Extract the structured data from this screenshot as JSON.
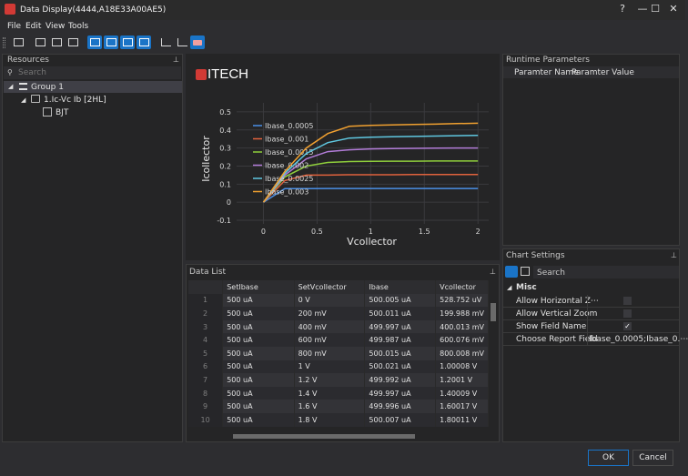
{
  "window": {
    "title": "Data Display(4444,A18E33A00AE5)",
    "controls": [
      "?",
      "—",
      "☐",
      "✕"
    ]
  },
  "menu": [
    "File",
    "Edit",
    "View",
    "Tools"
  ],
  "toolbar": {
    "icons": [
      "print-icon",
      "export-image-icon",
      "export-data-icon",
      "copy-icon",
      "chart-view-icon",
      "table-view-icon",
      "split-view-icon",
      "settings-view-icon",
      "axis-x-icon",
      "axis-y-icon",
      "eraser-icon"
    ],
    "active": [
      4,
      5,
      6,
      7,
      10
    ]
  },
  "resources": {
    "title": "Resources",
    "search_placeholder": "Search",
    "tree": {
      "group": "Group 1",
      "child": "1.Ic-Vc Ib [2HL]",
      "leaf": "BJT"
    }
  },
  "chart_data": {
    "type": "line",
    "logo": "ITECH",
    "xlabel": "Vcollector",
    "ylabel": "Icollector",
    "xlim": [
      -0.25,
      2.1
    ],
    "ylim": [
      -0.12,
      0.55
    ],
    "xticks": [
      "0",
      "0.5",
      "1",
      "1.5",
      "2"
    ],
    "yticks": [
      "0.5",
      "0.4",
      "0.3",
      "0.2",
      "0.1",
      "0",
      "-0.1"
    ],
    "legend_position": "top-left",
    "x": [
      0,
      0.2,
      0.4,
      0.6,
      0.8,
      1.0,
      1.2,
      1.4,
      1.6,
      1.8,
      2.0
    ],
    "series": [
      {
        "name": "Ibase_0.0005",
        "color": "#4a8fe6",
        "values": [
          0,
          0.075,
          0.075,
          0.076,
          0.076,
          0.076,
          0.076,
          0.076,
          0.076,
          0.076,
          0.076
        ]
      },
      {
        "name": "Ibase_0.001",
        "color": "#e0623d",
        "values": [
          0,
          0.12,
          0.15,
          0.15,
          0.152,
          0.152,
          0.152,
          0.153,
          0.153,
          0.153,
          0.153
        ]
      },
      {
        "name": "Ibase_0.0015",
        "color": "#8fcf3c",
        "values": [
          0,
          0.14,
          0.2,
          0.22,
          0.225,
          0.226,
          0.227,
          0.227,
          0.228,
          0.228,
          0.228
        ]
      },
      {
        "name": "Ibase_0.002",
        "color": "#b27cd8",
        "values": [
          0,
          0.15,
          0.24,
          0.28,
          0.29,
          0.295,
          0.297,
          0.298,
          0.299,
          0.3,
          0.3
        ]
      },
      {
        "name": "Ibase_0.0025",
        "color": "#5fc7e0",
        "values": [
          0,
          0.16,
          0.27,
          0.33,
          0.355,
          0.36,
          0.362,
          0.364,
          0.366,
          0.368,
          0.37
        ]
      },
      {
        "name": "Ibase_0.003",
        "color": "#f0a030",
        "values": [
          0,
          0.17,
          0.3,
          0.38,
          0.42,
          0.425,
          0.428,
          0.43,
          0.432,
          0.435,
          0.437
        ]
      }
    ]
  },
  "data_list": {
    "title": "Data List",
    "columns": [
      "",
      "SetIbase",
      "SetVcollector",
      "Ibase",
      "Vcollector"
    ],
    "rows": [
      [
        "1",
        "500 uA",
        "0 V",
        "500.005 uA",
        "528.752 uV"
      ],
      [
        "2",
        "500 uA",
        "200 mV",
        "500.011 uA",
        "199.988 mV"
      ],
      [
        "3",
        "500 uA",
        "400 mV",
        "499.997 uA",
        "400.013 mV"
      ],
      [
        "4",
        "500 uA",
        "600 mV",
        "499.987 uA",
        "600.076 mV"
      ],
      [
        "5",
        "500 uA",
        "800 mV",
        "500.015 uA",
        "800.008 mV"
      ],
      [
        "6",
        "500 uA",
        "1 V",
        "500.021 uA",
        "1.00008 V"
      ],
      [
        "7",
        "500 uA",
        "1.2 V",
        "499.992 uA",
        "1.2001 V"
      ],
      [
        "8",
        "500 uA",
        "1.4 V",
        "499.997 uA",
        "1.40009 V"
      ],
      [
        "9",
        "500 uA",
        "1.6 V",
        "499.996 uA",
        "1.60017 V"
      ],
      [
        "10",
        "500 uA",
        "1.8 V",
        "500.007 uA",
        "1.80011 V"
      ]
    ]
  },
  "runtime": {
    "title": "Runtime Parameters",
    "col_name": "Paramter Name",
    "col_value": "Paramter Value"
  },
  "chart_settings": {
    "title": "Chart Settings",
    "search_placeholder": "Search",
    "category": "Misc",
    "props": [
      {
        "name": "Allow Horizontal Z⋯",
        "checked": false
      },
      {
        "name": "Allow Vertical Zoom",
        "checked": false
      },
      {
        "name": "Show Field Name",
        "checked": true
      },
      {
        "name": "Choose Report Field",
        "value": "Ibase_0.0005;Ibase_0.⋯"
      }
    ]
  },
  "buttons": {
    "ok": "OK",
    "cancel": "Cancel"
  },
  "colors": {
    "accent": "#1a74c7",
    "background": "#2d2d30",
    "panel": "#252526"
  }
}
